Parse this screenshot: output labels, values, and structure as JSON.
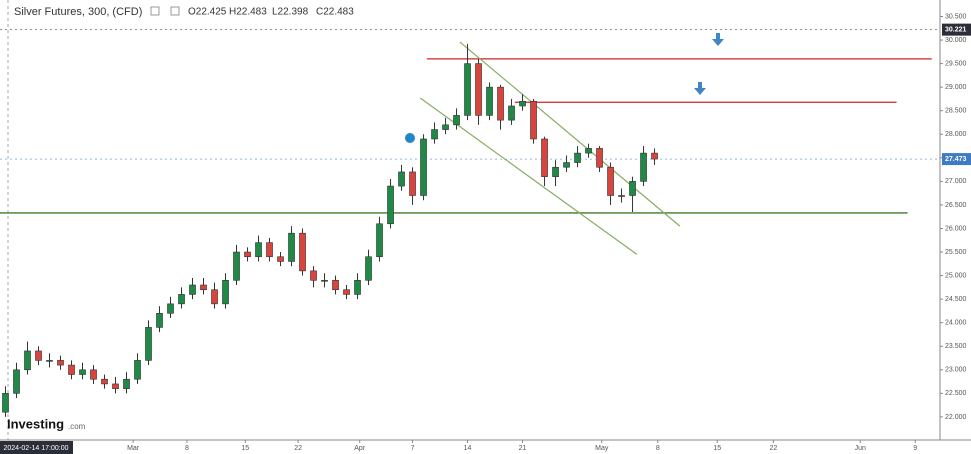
{
  "chart_data": {
    "type": "candlestick",
    "title": "Silver Futures, 300, (CFD)",
    "ohlc_labels": [
      "O22.425",
      "H22.483",
      "L22.398",
      "C22.483"
    ],
    "logo": [
      "Investing",
      ".com"
    ],
    "cursor_time": "2024-02-14 17:00:00",
    "up_color": "#1f8a45",
    "down_color": "#d9453d",
    "x": [
      0.5,
      1.5,
      2.5,
      3.5,
      4.5,
      5.5,
      6.5,
      7.5,
      8.5,
      9.5,
      10.5,
      11.5,
      12.5,
      13.5,
      14.5,
      15.5,
      16.5,
      17.5,
      18.5,
      19.5,
      20.5,
      21.5,
      22.5,
      23.5,
      24.5,
      25.5,
      26.5,
      27.5,
      28.5,
      29.5,
      30.5,
      31.5,
      32.5,
      33.5,
      34.5,
      35.5,
      36.5,
      37.5,
      38.5,
      39.5,
      40.5,
      41.5,
      42.5,
      43.5,
      44.5,
      45.5,
      46.5,
      47.5,
      48.5,
      49.5,
      50.5,
      51.5,
      52.5,
      53.5,
      54.5,
      55.5,
      56.5,
      57.5,
      58.5,
      59.5
    ],
    "open": [
      22.1,
      22.5,
      23.0,
      23.4,
      23.2,
      23.2,
      23.1,
      22.9,
      23.0,
      22.8,
      22.7,
      22.6,
      22.8,
      23.2,
      23.9,
      24.2,
      24.4,
      24.6,
      24.8,
      24.7,
      24.4,
      24.9,
      25.5,
      25.4,
      25.7,
      25.4,
      25.3,
      25.9,
      25.1,
      24.9,
      24.9,
      24.7,
      24.6,
      24.9,
      25.4,
      26.1,
      26.9,
      27.2,
      26.7,
      27.9,
      28.1,
      28.2,
      28.4,
      29.5,
      28.4,
      29.0,
      28.3,
      28.6,
      28.7,
      27.9,
      27.1,
      27.3,
      27.4,
      27.6,
      27.7,
      27.3,
      26.7,
      26.7,
      27.0,
      27.6
    ],
    "high": [
      22.65,
      23.15,
      23.6,
      23.5,
      23.35,
      23.3,
      23.2,
      23.15,
      23.1,
      22.9,
      22.85,
      22.95,
      23.35,
      24.05,
      24.35,
      24.55,
      24.75,
      24.95,
      24.95,
      24.85,
      25.05,
      25.65,
      25.6,
      25.85,
      25.8,
      25.5,
      26.05,
      26.0,
      25.2,
      25.05,
      25.0,
      24.8,
      25.05,
      25.55,
      26.25,
      27.05,
      27.35,
      27.3,
      28.0,
      28.25,
      28.35,
      28.55,
      29.92,
      29.6,
      29.1,
      29.05,
      28.75,
      28.85,
      28.75,
      27.95,
      27.45,
      27.55,
      27.75,
      27.8,
      27.75,
      27.4,
      26.85,
      27.1,
      27.75,
      27.7
    ],
    "low": [
      22.0,
      22.4,
      22.9,
      23.1,
      23.05,
      23.0,
      22.8,
      22.8,
      22.7,
      22.6,
      22.5,
      22.5,
      22.7,
      23.1,
      23.8,
      24.1,
      24.3,
      24.5,
      24.6,
      24.3,
      24.3,
      24.8,
      25.3,
      25.3,
      25.3,
      25.2,
      25.2,
      25.0,
      24.75,
      24.75,
      24.6,
      24.5,
      24.5,
      24.8,
      25.3,
      26.0,
      26.8,
      26.5,
      26.6,
      27.8,
      28.0,
      28.1,
      28.3,
      28.2,
      28.3,
      28.1,
      28.2,
      28.5,
      27.8,
      26.9,
      26.9,
      27.2,
      27.3,
      27.5,
      27.2,
      26.5,
      26.55,
      26.35,
      26.9,
      27.35
    ],
    "close": [
      22.5,
      23.0,
      23.4,
      23.2,
      23.2,
      23.1,
      22.9,
      23.0,
      22.8,
      22.7,
      22.6,
      22.8,
      23.2,
      23.9,
      24.2,
      24.4,
      24.6,
      24.8,
      24.7,
      24.4,
      24.9,
      25.5,
      25.4,
      25.7,
      25.4,
      25.3,
      25.9,
      25.1,
      24.9,
      24.9,
      24.7,
      24.6,
      24.9,
      25.4,
      26.1,
      26.9,
      27.2,
      26.7,
      27.9,
      28.1,
      28.2,
      28.4,
      29.5,
      28.4,
      29.0,
      28.3,
      28.6,
      28.7,
      27.9,
      27.1,
      27.3,
      27.4,
      27.6,
      27.7,
      27.3,
      26.7,
      26.7,
      27.0,
      27.6,
      27.473
    ],
    "xlim": [
      0,
      85.45
    ],
    "ylim": [
      21.51,
      30.85
    ],
    "grid": false,
    "yticks": [
      {
        "value": 30.5,
        "label": "30.500"
      },
      {
        "value": 30,
        "label": "30.000"
      },
      {
        "value": 29.5,
        "label": "29.500"
      },
      {
        "value": 29,
        "label": "29.000"
      },
      {
        "value": 28.5,
        "label": "28.500"
      },
      {
        "value": 28,
        "label": "28.000"
      },
      {
        "value": 27.5,
        "label": "27.500"
      },
      {
        "value": 27,
        "label": "27.000"
      },
      {
        "value": 26.5,
        "label": "26.500"
      },
      {
        "value": 26,
        "label": "26.000"
      },
      {
        "value": 25.5,
        "label": "25.500"
      },
      {
        "value": 25,
        "label": "25.000"
      },
      {
        "value": 24.5,
        "label": "24.500"
      },
      {
        "value": 24,
        "label": "24.000"
      },
      {
        "value": 23.5,
        "label": "23.500"
      },
      {
        "value": 23,
        "label": "23.000"
      },
      {
        "value": 22.5,
        "label": "22.500"
      },
      {
        "value": 22,
        "label": "22.000"
      }
    ],
    "xticks": [
      {
        "value": 12.1,
        "label": "Mar"
      },
      {
        "value": 17,
        "label": "8"
      },
      {
        "value": 22.3,
        "label": "15"
      },
      {
        "value": 27.1,
        "label": "22"
      },
      {
        "value": 32.7,
        "label": "Apr"
      },
      {
        "value": 37.5,
        "label": "7"
      },
      {
        "value": 42.5,
        "label": "14"
      },
      {
        "value": 47.5,
        "label": "21"
      },
      {
        "value": 54.7,
        "label": "May"
      },
      {
        "value": 59.8,
        "label": "8"
      },
      {
        "value": 65.2,
        "label": "15"
      },
      {
        "value": 70.3,
        "label": "22"
      },
      {
        "value": 78.2,
        "label": "Jun"
      },
      {
        "value": 83.2,
        "label": "9"
      }
    ],
    "price_tags": [
      {
        "value": 30.221,
        "label": "30.221",
        "color": "#2a2e39"
      },
      {
        "value": 27.473,
        "label": "27.473",
        "color": "#3d7bc4"
      }
    ],
    "levels": [
      {
        "value": 29.6,
        "x": [
          38.8,
          84.7
        ],
        "color": "#d32222"
      },
      {
        "value": 28.68,
        "x": [
          46.8,
          81.5
        ],
        "color": "#c62828"
      },
      {
        "value": 26.33,
        "x": [
          0,
          82.5
        ],
        "color": "#3f7a2c"
      }
    ],
    "trendlines": [
      {
        "x": [
          41.8,
          61.8
        ],
        "y": [
          29.96,
          26.05
        ],
        "color": "#86ad62"
      },
      {
        "x": [
          38.2,
          57.9
        ],
        "y": [
          28.77,
          25.45
        ],
        "color": "#86ad62"
      }
    ]
  }
}
